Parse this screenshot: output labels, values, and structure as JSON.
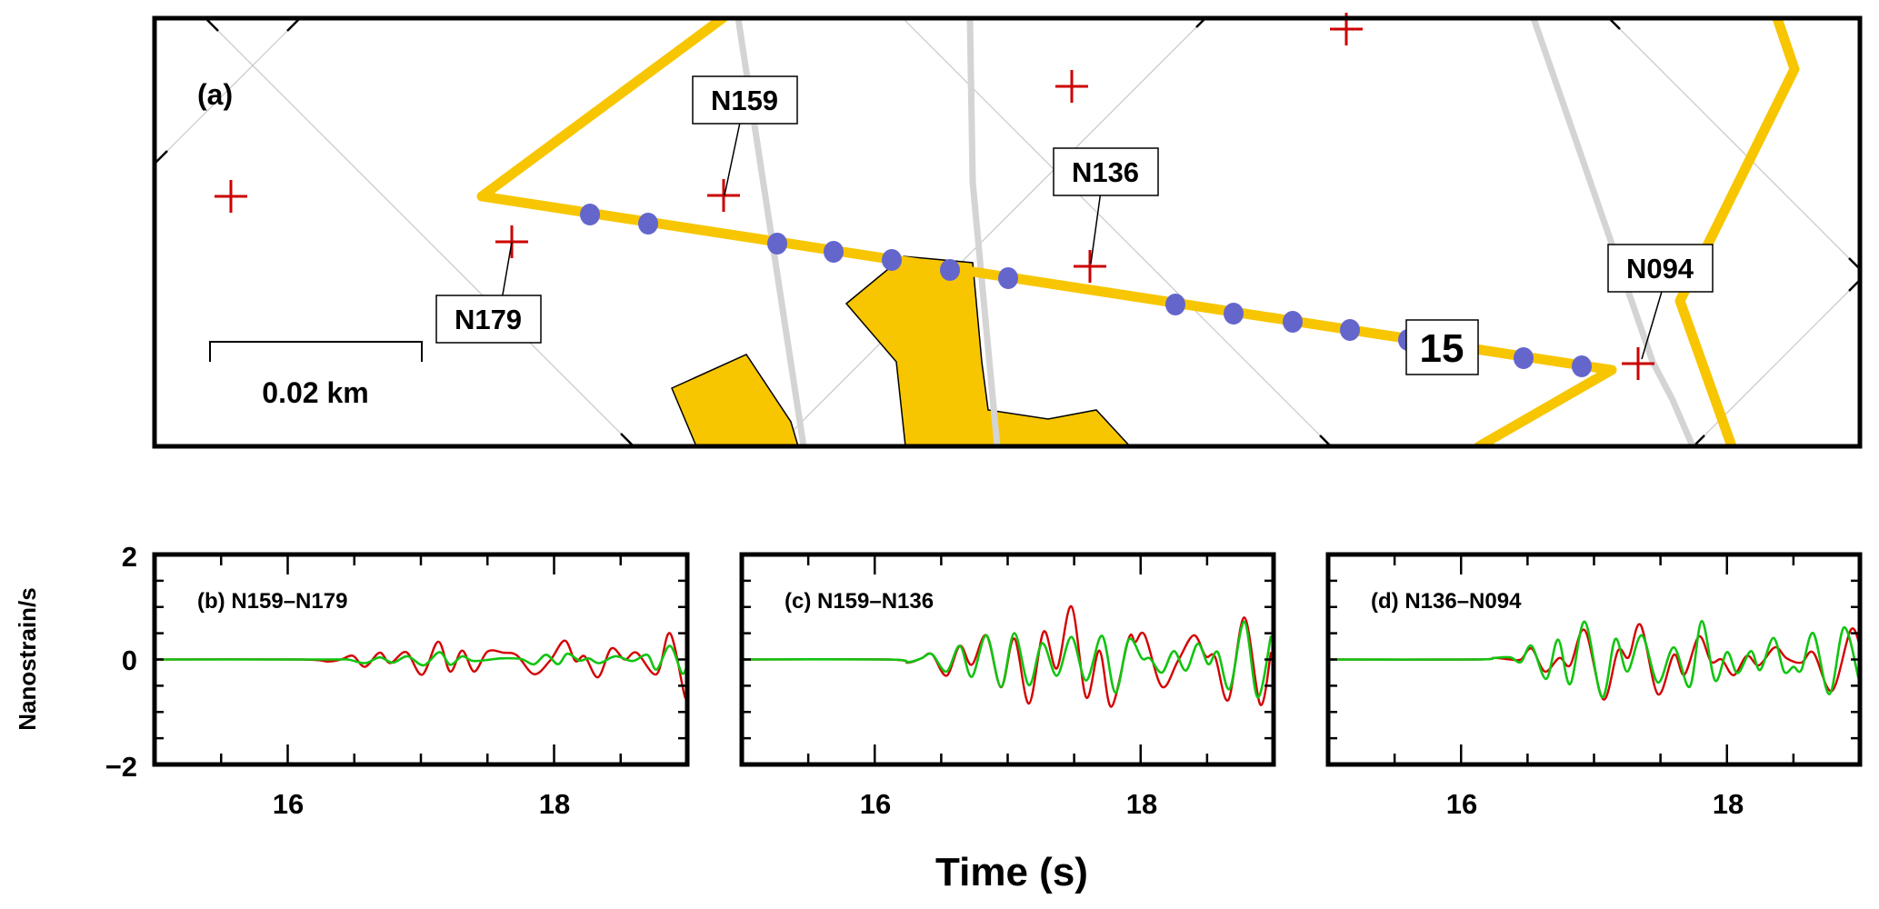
{
  "figure": {
    "panel_a": {
      "label": "(a)",
      "scale_bar_label": "0.02 km",
      "station_labels": [
        "N159",
        "N136",
        "N179",
        "N094"
      ],
      "segment_label": "15",
      "station_count_marked": 7,
      "channel_count_marked": 14
    },
    "shared": {
      "xlabel": "Time (s)",
      "ylabel": "Nanostrain/s"
    }
  },
  "chart_data": [
    {
      "type": "line",
      "title": "(b) N159–N179",
      "xlabel": "Time (s)",
      "ylabel": "Nanostrain/s",
      "xlim": [
        15,
        19
      ],
      "ylim": [
        -2,
        2
      ],
      "xticks": [
        16,
        18
      ],
      "xtick_labels": [
        "16",
        "18"
      ],
      "yticks": [
        -2,
        0,
        2
      ],
      "ytick_labels": [
        "−2",
        "0",
        "2"
      ],
      "grid": false,
      "series": [
        {
          "name": "red",
          "color": "#d40000",
          "x": [
            15.0,
            16.1,
            16.3,
            16.4,
            16.49,
            16.58,
            16.69,
            16.77,
            16.89,
            17.01,
            17.13,
            17.22,
            17.31,
            17.4,
            17.5,
            17.62,
            17.72,
            17.85,
            17.97,
            18.08,
            18.16,
            18.23,
            18.33,
            18.43,
            18.53,
            18.62,
            18.77,
            18.87,
            18.98,
            19.0
          ],
          "y": [
            0,
            0,
            -0.04,
            0.0,
            0.07,
            -0.14,
            0.13,
            -0.07,
            0.14,
            -0.29,
            0.34,
            -0.23,
            0.17,
            -0.23,
            0.15,
            0.13,
            0.08,
            -0.28,
            -0.02,
            0.36,
            -0.03,
            0.06,
            -0.34,
            0.21,
            0.0,
            0.13,
            -0.28,
            0.5,
            -0.69,
            -0.6
          ]
        },
        {
          "name": "green",
          "color": "#11c411",
          "x": [
            15.0,
            16.3,
            16.45,
            16.58,
            16.69,
            16.79,
            16.9,
            17.02,
            17.14,
            17.22,
            17.31,
            17.4,
            17.6,
            17.75,
            17.85,
            17.94,
            18.03,
            18.1,
            18.19,
            18.26,
            18.34,
            18.46,
            18.59,
            18.7,
            18.77,
            18.87,
            18.96,
            19.0
          ],
          "y": [
            0,
            0,
            0.0,
            -0.07,
            0.04,
            -0.06,
            0.06,
            -0.11,
            0.14,
            -0.1,
            0.06,
            -0.03,
            0.02,
            0.01,
            -0.09,
            0.09,
            -0.09,
            0.11,
            -0.02,
            0.02,
            -0.07,
            0.06,
            -0.03,
            0.09,
            -0.19,
            0.26,
            -0.26,
            -0.1
          ]
        }
      ]
    },
    {
      "type": "line",
      "title": "(c) N159–N136",
      "xlabel": "Time (s)",
      "ylabel": "",
      "xlim": [
        15,
        19
      ],
      "ylim": [
        -2,
        2
      ],
      "xticks": [
        16,
        18
      ],
      "xtick_labels": [
        "16",
        "18"
      ],
      "grid": false,
      "series": [
        {
          "name": "red",
          "color": "#d40000",
          "x": [
            15.0,
            16.1,
            16.25,
            16.35,
            16.43,
            16.54,
            16.64,
            16.73,
            16.84,
            16.95,
            17.05,
            17.16,
            17.27,
            17.37,
            17.48,
            17.59,
            17.69,
            17.78,
            17.91,
            17.96,
            18.03,
            18.16,
            18.28,
            18.4,
            18.49,
            18.56,
            18.66,
            18.78,
            18.9,
            18.98
          ],
          "y": [
            0,
            0,
            -0.06,
            0.02,
            0.1,
            -0.31,
            0.26,
            -0.1,
            0.46,
            -0.53,
            0.4,
            -0.84,
            0.53,
            -0.17,
            1.01,
            -0.72,
            0.17,
            -0.9,
            0.4,
            0.33,
            0.47,
            -0.52,
            -0.03,
            0.46,
            0.06,
            0.05,
            -0.77,
            0.8,
            -0.86,
            0.14
          ]
        },
        {
          "name": "green",
          "color": "#11c411",
          "x": [
            15.0,
            16.1,
            16.25,
            16.35,
            16.43,
            16.54,
            16.64,
            16.73,
            16.84,
            16.95,
            17.05,
            17.16,
            17.26,
            17.37,
            17.48,
            17.59,
            17.71,
            17.81,
            17.91,
            18.01,
            18.07,
            18.16,
            18.25,
            18.34,
            18.43,
            18.51,
            18.58,
            18.67,
            18.78,
            18.88,
            18.98
          ],
          "y": [
            0,
            0,
            -0.05,
            0.02,
            0.1,
            -0.23,
            0.26,
            -0.33,
            0.46,
            -0.52,
            0.5,
            -0.49,
            0.31,
            -0.31,
            0.43,
            -0.4,
            0.45,
            -0.63,
            0.38,
            0.02,
            0.02,
            -0.25,
            0.16,
            -0.21,
            0.3,
            -0.09,
            0.14,
            -0.56,
            0.72,
            -0.72,
            0.45
          ]
        }
      ]
    },
    {
      "type": "line",
      "title": "(d) N136–N094",
      "xlabel": "Time (s)",
      "ylabel": "",
      "xlim": [
        15,
        19
      ],
      "ylim": [
        -2,
        2
      ],
      "xticks": [
        16,
        18
      ],
      "xtick_labels": [
        "16",
        "18"
      ],
      "grid": false,
      "series": [
        {
          "name": "red",
          "color": "#d40000",
          "x": [
            15.0,
            16.1,
            16.25,
            16.37,
            16.45,
            16.53,
            16.63,
            16.74,
            16.82,
            16.93,
            17.07,
            17.18,
            17.26,
            17.35,
            17.48,
            17.6,
            17.68,
            17.79,
            17.88,
            17.96,
            18.05,
            18.15,
            18.24,
            18.36,
            18.45,
            18.56,
            18.65,
            18.79,
            18.93,
            19.0
          ],
          "y": [
            0,
            0,
            0.03,
            0.0,
            0.0,
            0.21,
            -0.23,
            0.03,
            -0.11,
            0.56,
            -0.76,
            0.17,
            0.04,
            0.66,
            -0.66,
            0.09,
            -0.29,
            0.44,
            -0.04,
            0.0,
            -0.3,
            0.07,
            -0.11,
            0.23,
            0.02,
            -0.06,
            0.13,
            -0.6,
            0.56,
            0.26
          ]
        },
        {
          "name": "green",
          "color": "#11c411",
          "x": [
            15.0,
            16.1,
            16.25,
            16.37,
            16.45,
            16.53,
            16.64,
            16.73,
            16.82,
            16.93,
            17.06,
            17.16,
            17.25,
            17.36,
            17.48,
            17.6,
            17.72,
            17.81,
            17.91,
            18.0,
            18.08,
            18.18,
            18.25,
            18.35,
            18.43,
            18.5,
            18.56,
            18.65,
            18.77,
            18.88,
            18.99
          ],
          "y": [
            0,
            0,
            0.03,
            0.04,
            -0.05,
            0.26,
            -0.37,
            0.38,
            -0.47,
            0.72,
            -0.72,
            0.39,
            -0.23,
            0.46,
            -0.44,
            0.23,
            -0.52,
            0.73,
            -0.4,
            0.14,
            -0.26,
            0.16,
            -0.2,
            0.41,
            -0.23,
            -0.14,
            -0.2,
            0.5,
            -0.66,
            0.61,
            -0.36
          ]
        }
      ]
    }
  ]
}
